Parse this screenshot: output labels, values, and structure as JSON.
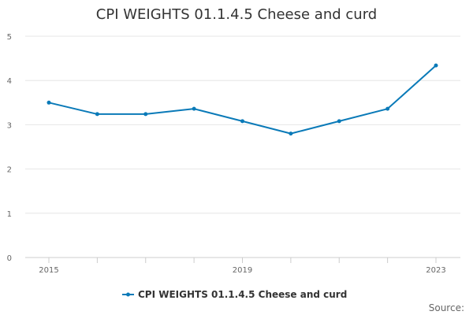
{
  "chart_data": {
    "type": "line",
    "title": "CPI WEIGHTS 01.1.4.5 Cheese and curd",
    "x": [
      2015,
      2016,
      2017,
      2018,
      2019,
      2020,
      2021,
      2022,
      2023
    ],
    "x_tick_labels": [
      "2015",
      "2019",
      "2023"
    ],
    "series": [
      {
        "name": "CPI WEIGHTS 01.1.4.5 Cheese and curd",
        "values": [
          3.5,
          3.24,
          3.24,
          3.36,
          3.08,
          2.8,
          3.08,
          3.36,
          4.34
        ],
        "color": "#0a7ab8"
      }
    ],
    "y_ticks": [
      0,
      1,
      2,
      3,
      4,
      5
    ],
    "ylim": [
      0,
      5
    ],
    "grid": true,
    "legend": "bottom-center",
    "source_label": "Source:"
  }
}
